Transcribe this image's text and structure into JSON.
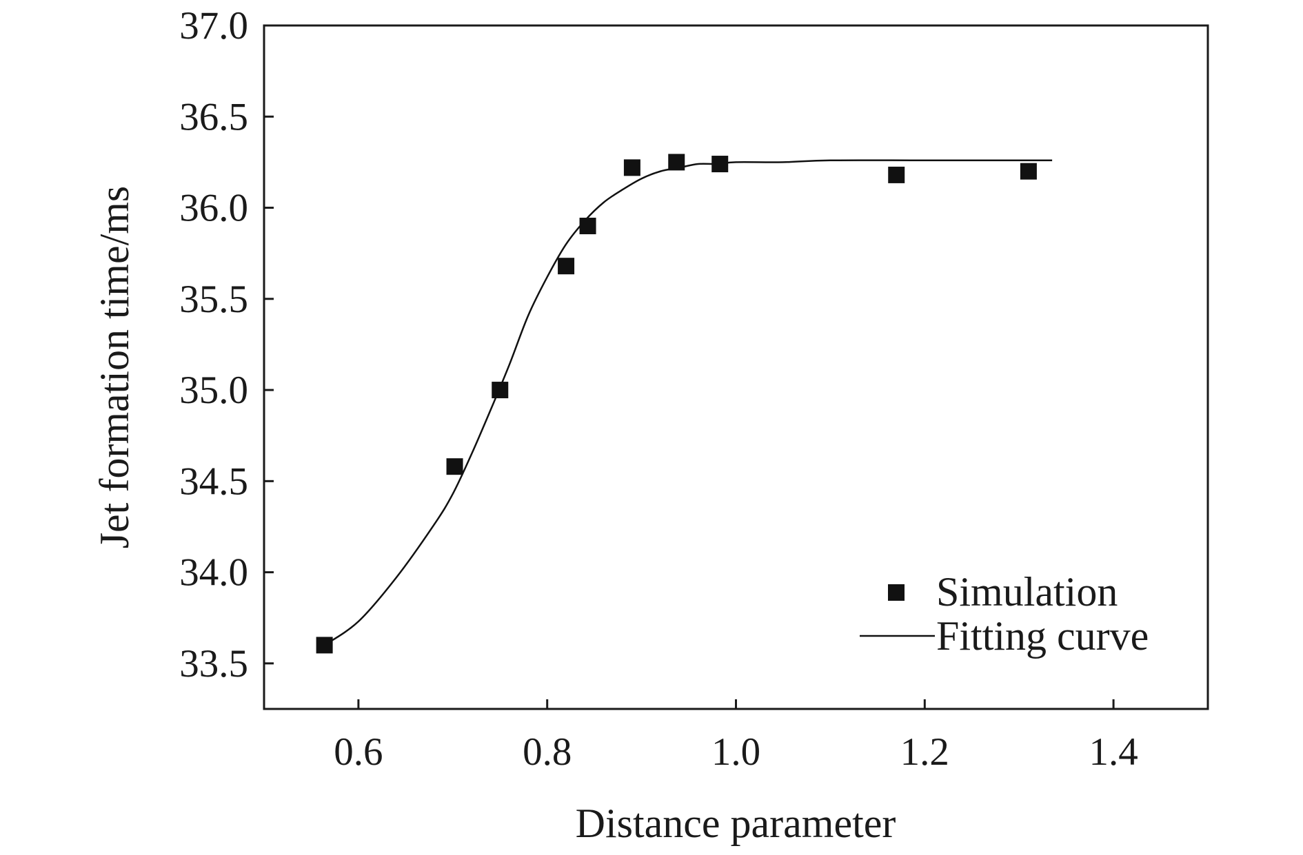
{
  "chart_data": {
    "type": "scatter",
    "xlabel": "Distance parameter",
    "ylabel": "Jet formation time/ms",
    "xlim": [
      0.5,
      1.5
    ],
    "ylim": [
      33.25,
      37.0
    ],
    "x_ticks": [
      0.6,
      0.8,
      1.0,
      1.2,
      1.4
    ],
    "x_tick_labels": [
      "0.6",
      "0.8",
      "1.0",
      "1.2",
      "1.4"
    ],
    "y_ticks": [
      33.5,
      34.0,
      34.5,
      35.0,
      35.5,
      36.0,
      36.5,
      37.0
    ],
    "y_tick_labels": [
      "33.5",
      "34.0",
      "34.5",
      "35.0",
      "35.5",
      "36.0",
      "36.5",
      "37.0"
    ],
    "grid": false,
    "legend_position": "bottom-right",
    "series": [
      {
        "name": "Simulation",
        "type": "scatter",
        "marker": "square",
        "color": "#111111",
        "x": [
          0.564,
          0.702,
          0.75,
          0.82,
          0.843,
          0.89,
          0.937,
          0.983,
          1.17,
          1.31
        ],
        "y": [
          33.6,
          34.58,
          35.0,
          35.68,
          35.9,
          36.22,
          36.25,
          36.24,
          36.18,
          36.2
        ]
      },
      {
        "name": "Fitting curve",
        "type": "line",
        "color": "#111111",
        "x": [
          0.564,
          0.6,
          0.64,
          0.68,
          0.7,
          0.72,
          0.74,
          0.76,
          0.78,
          0.8,
          0.82,
          0.84,
          0.86,
          0.88,
          0.9,
          0.92,
          0.94,
          0.96,
          0.98,
          1.0,
          1.05,
          1.1,
          1.2,
          1.3,
          1.335
        ],
        "y": [
          33.6,
          33.73,
          33.97,
          34.26,
          34.43,
          34.65,
          34.89,
          35.14,
          35.41,
          35.62,
          35.8,
          35.93,
          36.03,
          36.1,
          36.16,
          36.2,
          36.22,
          36.24,
          36.24,
          36.25,
          36.25,
          36.26,
          36.26,
          36.26,
          36.26
        ]
      }
    ]
  }
}
